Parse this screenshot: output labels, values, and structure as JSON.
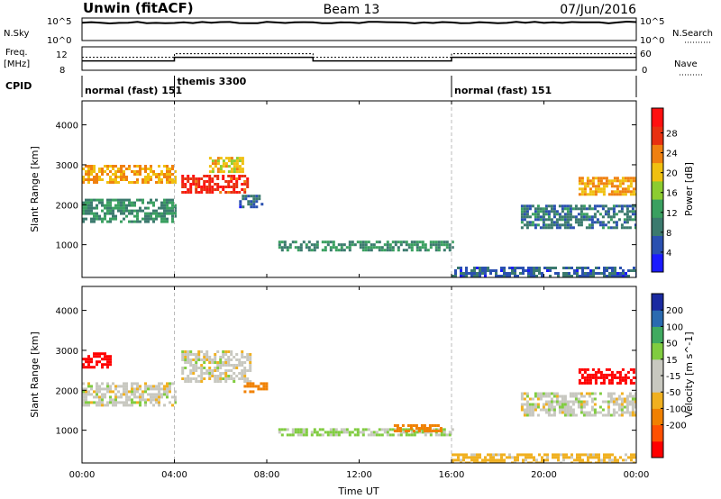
{
  "header": {
    "station": "Unwin (fitACF)",
    "beam": "Beam 13",
    "date": "07/Jun/2016"
  },
  "top_panels": {
    "nsky_label": "N.Sky",
    "nsky_ticks": [
      "10^5",
      "10^0"
    ],
    "nsky_right_ticks": [
      "10^5",
      "10^0"
    ],
    "nsearch_label": "N.Search",
    "freq_label": "Freq.",
    "freq_unit": "[MHz]",
    "freq_ticks": [
      "12",
      "8"
    ],
    "nave_ticks": [
      "60",
      "0"
    ],
    "nave_label": "Nave",
    "cpid_label": "CPID",
    "cpid_programs": [
      {
        "label": "normal (fast) 151",
        "start_h": 0.0
      },
      {
        "label": "themis 3300",
        "start_h": 4.0
      },
      {
        "label": "normal (fast) 151",
        "start_h": 16.0
      }
    ],
    "freq_series": [
      {
        "start_h": 0.0,
        "end_h": 4.0,
        "mhz": 10.6
      },
      {
        "start_h": 4.0,
        "end_h": 10.0,
        "mhz": 11.6
      },
      {
        "start_h": 10.0,
        "end_h": 16.0,
        "mhz": 10.6
      },
      {
        "start_h": 16.0,
        "end_h": 24.0,
        "mhz": 11.6
      }
    ]
  },
  "colors": {
    "power_scale": [
      "#1a1aff",
      "#2a50b0",
      "#3b7a6e",
      "#3aa060",
      "#8ccc30",
      "#f0c010",
      "#f08010",
      "#e83010",
      "#ff1010"
    ],
    "velocity_scale": [
      "#ff0000",
      "#ff5000",
      "#f08000",
      "#f0b020",
      "#c8c8c0",
      "#c8c8c0",
      "#80cc40",
      "#40aa60",
      "#2a6ab0",
      "#1a2aa0"
    ]
  },
  "chart_data": [
    {
      "type": "heatmap",
      "title": "",
      "xlabel": "Time UT",
      "ylabel": "Slant Range [km]",
      "xlim": [
        0,
        24
      ],
      "ylim": [
        180,
        4600
      ],
      "x_ticks": [
        "00:00",
        "04:00",
        "08:00",
        "12:00",
        "16:00",
        "20:00",
        "00:00"
      ],
      "y_ticks": [
        1000,
        2000,
        3000,
        4000
      ],
      "colorbar_label": "Power [dB]",
      "colorbar_ticks": [
        "4",
        "8",
        "12",
        "16",
        "20",
        "24",
        "28"
      ],
      "colorbar_range": [
        0,
        30
      ],
      "regions": [
        {
          "t0": 0.0,
          "t1": 4.0,
          "r0": 2550,
          "r1": 3000,
          "value": 20
        },
        {
          "t0": 0.0,
          "t1": 4.0,
          "r0": 1600,
          "r1": 2150,
          "value": 10
        },
        {
          "t0": 4.3,
          "t1": 7.2,
          "r0": 2300,
          "r1": 2750,
          "value": 26
        },
        {
          "t0": 5.5,
          "t1": 7.0,
          "r0": 2800,
          "r1": 3200,
          "value": 18
        },
        {
          "t0": 6.8,
          "t1": 7.8,
          "r0": 1950,
          "r1": 2250,
          "value": 6
        },
        {
          "t0": 8.5,
          "t1": 16.0,
          "r0": 850,
          "r1": 1100,
          "value": 10
        },
        {
          "t0": 16.0,
          "t1": 24.0,
          "r0": 180,
          "r1": 450,
          "value": 6
        },
        {
          "t0": 21.5,
          "t1": 24.0,
          "r0": 2250,
          "r1": 2700,
          "value": 20
        },
        {
          "t0": 19.0,
          "t1": 24.0,
          "r0": 1400,
          "r1": 2000,
          "value": 8
        }
      ]
    },
    {
      "type": "heatmap",
      "title": "",
      "xlabel": "Time UT",
      "ylabel": "Slant Range [km]",
      "xlim": [
        0,
        24
      ],
      "ylim": [
        180,
        4600
      ],
      "x_ticks": [
        "00:00",
        "04:00",
        "08:00",
        "12:00",
        "16:00",
        "20:00",
        "00:00"
      ],
      "y_ticks": [
        1000,
        2000,
        3000,
        4000
      ],
      "colorbar_label": "Velocity [m s^-1]",
      "colorbar_ticks": [
        "200",
        "100",
        "50",
        "15",
        "-15",
        "-50",
        "-100",
        "-200"
      ],
      "colorbar_range": [
        -250,
        250
      ],
      "regions": [
        {
          "t0": 0.0,
          "t1": 1.2,
          "r0": 2550,
          "r1": 2950,
          "value": -220
        },
        {
          "t0": 0.0,
          "t1": 4.0,
          "r0": 1650,
          "r1": 2200,
          "value": 0
        },
        {
          "t0": 4.3,
          "t1": 7.3,
          "r0": 2250,
          "r1": 3000,
          "value": 0
        },
        {
          "t0": 7.0,
          "t1": 8.0,
          "r0": 1950,
          "r1": 2200,
          "value": -70
        },
        {
          "t0": 8.5,
          "t1": 16.0,
          "r0": 850,
          "r1": 1050,
          "value": 20
        },
        {
          "t0": 13.5,
          "t1": 15.5,
          "r0": 950,
          "r1": 1150,
          "value": -70
        },
        {
          "t0": 16.0,
          "t1": 24.0,
          "r0": 180,
          "r1": 420,
          "value": -30
        },
        {
          "t0": 21.5,
          "t1": 24.0,
          "r0": 2200,
          "r1": 2550,
          "value": -230
        },
        {
          "t0": 19.0,
          "t1": 24.0,
          "r0": 1350,
          "r1": 1950,
          "value": 0
        }
      ]
    }
  ]
}
